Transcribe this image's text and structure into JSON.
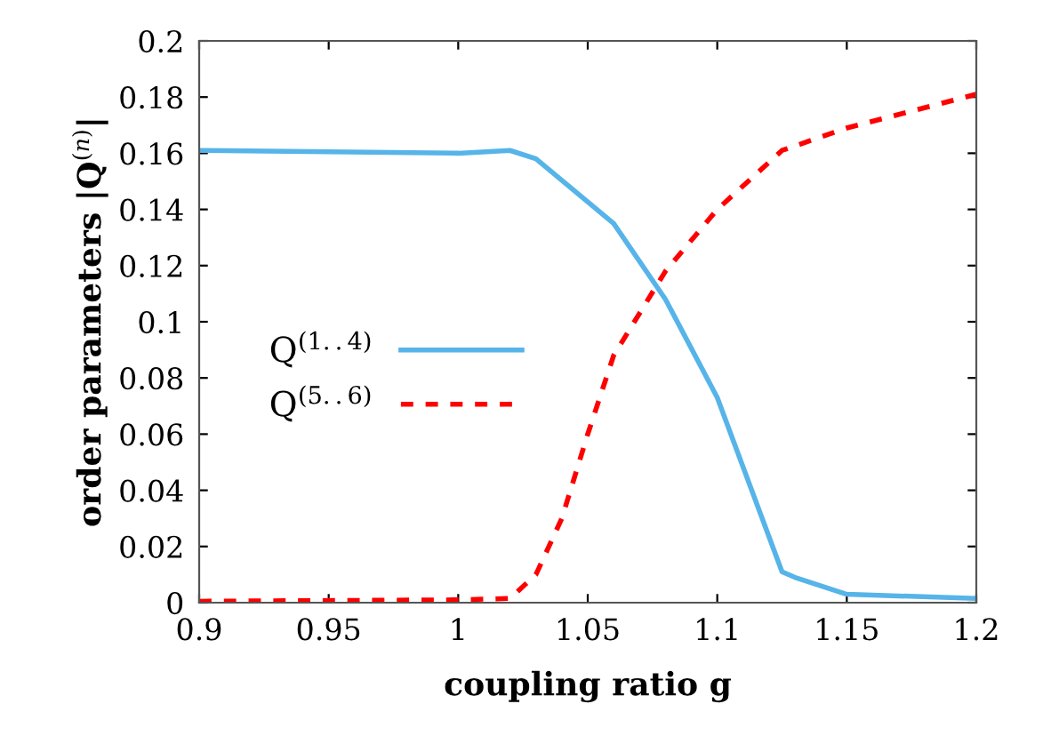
{
  "chart_data": {
    "type": "line",
    "xlabel": "coupling ratio g",
    "ylabel": "order parameters |Q$^{(n)}$|",
    "series": [
      {
        "name": "Q$^{(1..4)}$",
        "color": "#56b4e9",
        "line_style": "solid",
        "x": [
          0.9,
          1.0,
          1.02,
          1.03,
          1.06,
          1.08,
          1.1,
          1.125,
          1.13,
          1.15,
          1.2
        ],
        "values": [
          0.161,
          0.16,
          0.161,
          0.158,
          0.135,
          0.108,
          0.073,
          0.011,
          0.009,
          0.003,
          0.0015
        ]
      },
      {
        "name": "Q$^{(5..6)}$",
        "color": "#ff0000",
        "line_style": "dashed",
        "x": [
          0.9,
          1.0,
          1.02,
          1.03,
          1.04,
          1.05,
          1.06,
          1.08,
          1.1,
          1.125,
          1.15,
          1.2
        ],
        "values": [
          0.0005,
          0.001,
          0.0015,
          0.01,
          0.03,
          0.06,
          0.088,
          0.118,
          0.14,
          0.161,
          0.169,
          0.181
        ]
      }
    ],
    "xlim": [
      0.9,
      1.2
    ],
    "xticks": [
      0.9,
      0.95,
      1,
      1.05,
      1.1,
      1.15,
      1.2
    ],
    "ylim": [
      0,
      0.2
    ],
    "yticks": [
      0,
      0.02,
      0.04,
      0.06,
      0.08,
      0.1,
      0.12,
      0.14,
      0.16,
      0.18,
      0.2
    ],
    "grid": false,
    "legend": "left",
    "marker": "none"
  }
}
